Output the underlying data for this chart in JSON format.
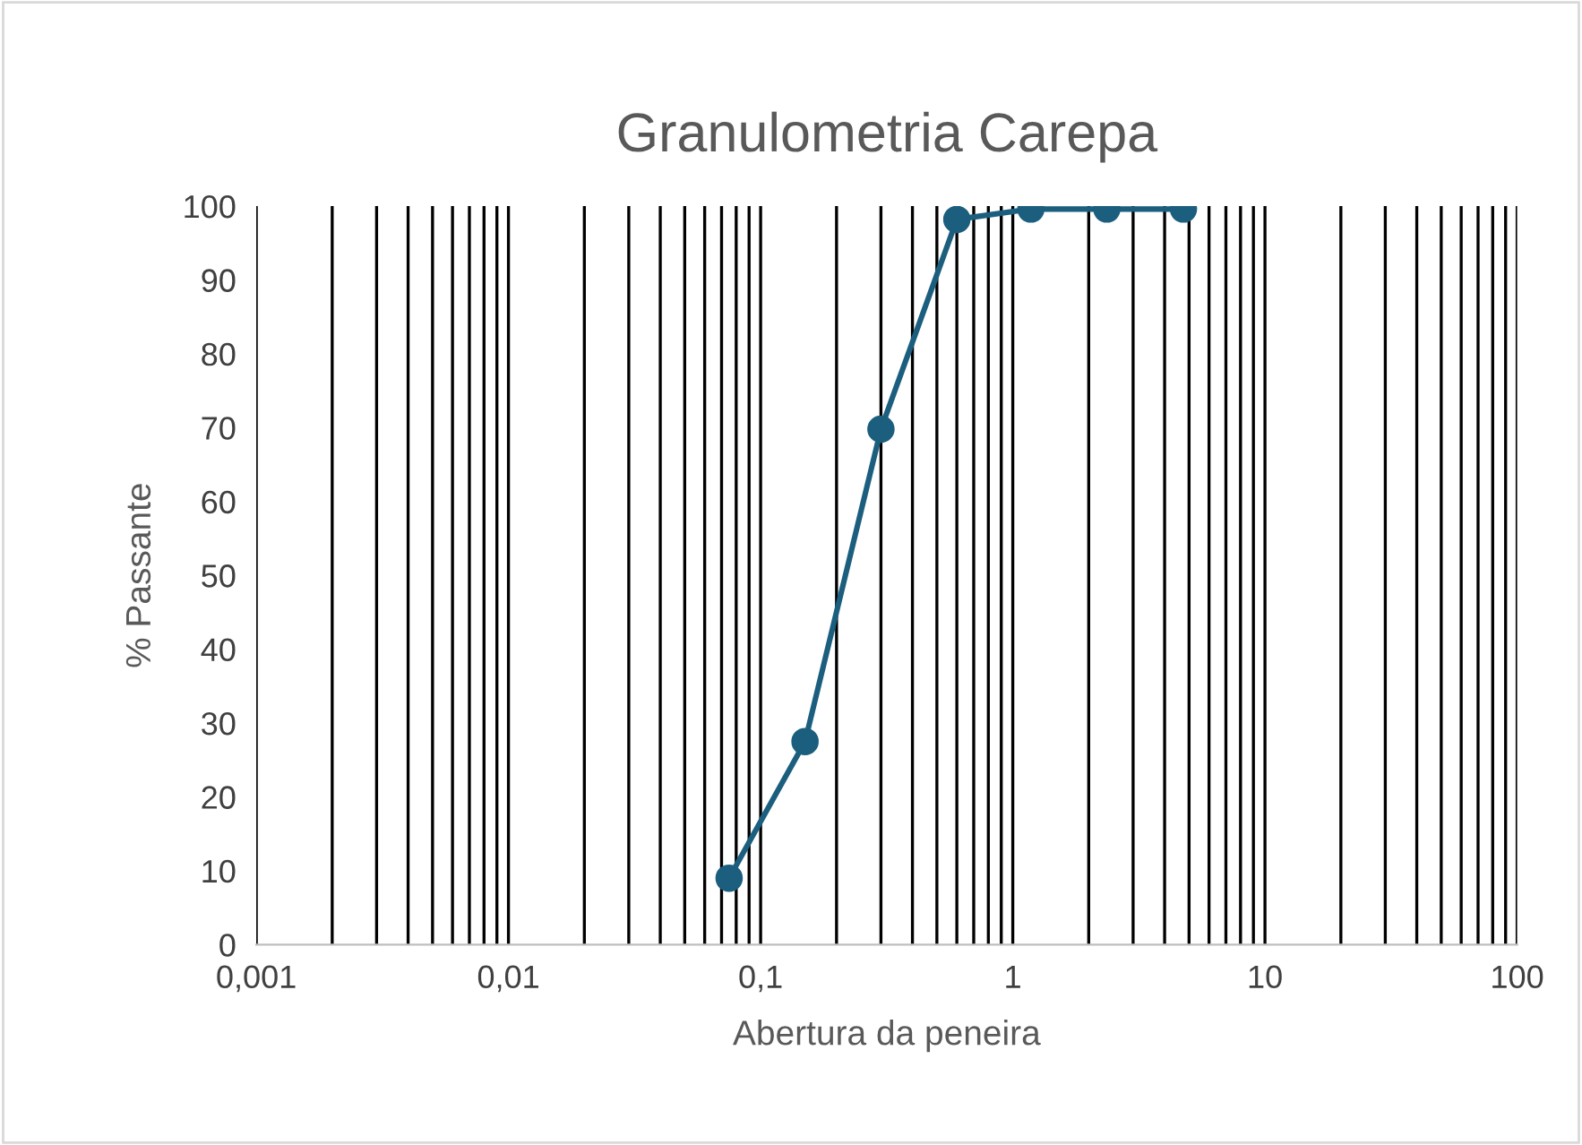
{
  "chart_data": {
    "type": "line",
    "title": "Granulometria Carepa",
    "xlabel": "Abertura da peneira",
    "ylabel": "% Passante",
    "log": "x",
    "xlim": [
      0.001,
      100
    ],
    "ylim": [
      0,
      100
    ],
    "xticks": [
      {
        "value": 0.001,
        "label": "0,001"
      },
      {
        "value": 0.002,
        "label": null
      },
      {
        "value": 0.003,
        "label": null
      },
      {
        "value": 0.004,
        "label": null
      },
      {
        "value": 0.005,
        "label": null
      },
      {
        "value": 0.006,
        "label": null
      },
      {
        "value": 0.007,
        "label": null
      },
      {
        "value": 0.008,
        "label": null
      },
      {
        "value": 0.009,
        "label": null
      },
      {
        "value": 0.01,
        "label": "0,01"
      },
      {
        "value": 0.02,
        "label": null
      },
      {
        "value": 0.03,
        "label": null
      },
      {
        "value": 0.04,
        "label": null
      },
      {
        "value": 0.05,
        "label": null
      },
      {
        "value": 0.06,
        "label": null
      },
      {
        "value": 0.07,
        "label": null
      },
      {
        "value": 0.08,
        "label": null
      },
      {
        "value": 0.09,
        "label": null
      },
      {
        "value": 0.1,
        "label": "0,1"
      },
      {
        "value": 0.2,
        "label": null
      },
      {
        "value": 0.3,
        "label": null
      },
      {
        "value": 0.4,
        "label": null
      },
      {
        "value": 0.5,
        "label": null
      },
      {
        "value": 0.6,
        "label": null
      },
      {
        "value": 0.7,
        "label": null
      },
      {
        "value": 0.8,
        "label": null
      },
      {
        "value": 0.9,
        "label": null
      },
      {
        "value": 1,
        "label": "1"
      },
      {
        "value": 2,
        "label": null
      },
      {
        "value": 3,
        "label": null
      },
      {
        "value": 4,
        "label": null
      },
      {
        "value": 5,
        "label": null
      },
      {
        "value": 6,
        "label": null
      },
      {
        "value": 7,
        "label": null
      },
      {
        "value": 8,
        "label": null
      },
      {
        "value": 9,
        "label": null
      },
      {
        "value": 10,
        "label": "10"
      },
      {
        "value": 20,
        "label": null
      },
      {
        "value": 30,
        "label": null
      },
      {
        "value": 40,
        "label": null
      },
      {
        "value": 50,
        "label": null
      },
      {
        "value": 60,
        "label": null
      },
      {
        "value": 70,
        "label": null
      },
      {
        "value": 80,
        "label": null
      },
      {
        "value": 90,
        "label": null
      },
      {
        "value": 100,
        "label": "100"
      }
    ],
    "yticks": [
      0,
      10,
      20,
      30,
      40,
      50,
      60,
      70,
      80,
      90,
      100
    ],
    "grid": "x",
    "marker": "circle",
    "line_style": "solid",
    "series": [
      {
        "color": "#1b5e7e",
        "x": [
          0.075,
          0.15,
          0.3,
          0.6,
          1.18,
          2.36,
          4.75
        ],
        "values": [
          9,
          27.5,
          69.8,
          98.2,
          99.6,
          99.6,
          99.6
        ]
      }
    ]
  }
}
